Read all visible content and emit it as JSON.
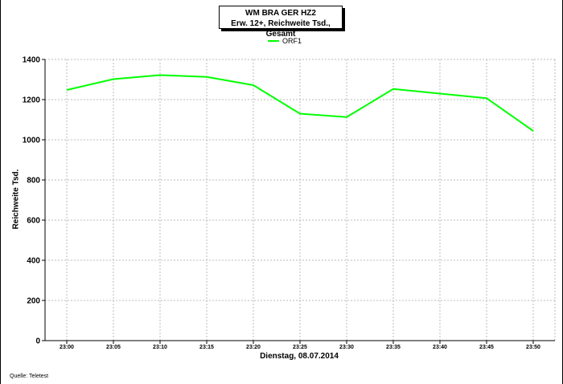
{
  "chart_data": {
    "type": "line",
    "title": "WM BRA GER HZ2",
    "subtitle": "Erw. 12+, Reichweite Tsd., Gesamt",
    "xlabel": "Dienstag, 08.07.2014",
    "ylabel": "Reichweite Tsd.",
    "categories": [
      "23:00",
      "23:05",
      "23:10",
      "23:15",
      "23:20",
      "23:25",
      "23:30",
      "23:35",
      "23:40",
      "23:45",
      "23:50"
    ],
    "series": [
      {
        "name": "ORF1",
        "color": "#00ff00",
        "values": [
          1248,
          1302,
          1322,
          1313,
          1272,
          1130,
          1113,
          1253,
          1230,
          1207,
          1044
        ]
      }
    ],
    "ylim": [
      0,
      1400
    ],
    "yticks": [
      0,
      200,
      400,
      600,
      800,
      1000,
      1200,
      1400
    ],
    "grid": true,
    "legend": "top-center"
  },
  "footer": {
    "source": "Quelle: Teletest"
  }
}
